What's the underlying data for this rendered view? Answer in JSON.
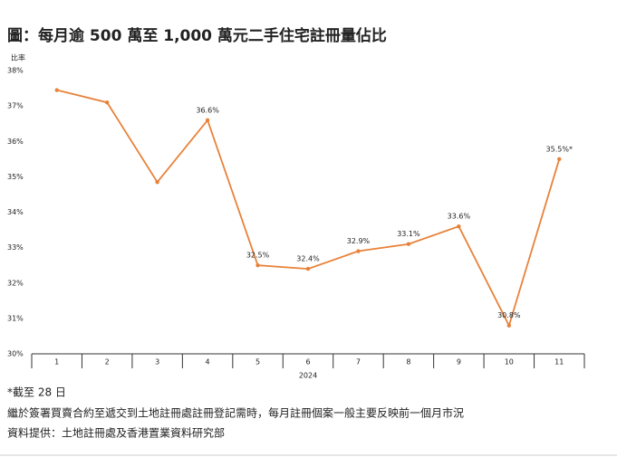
{
  "chart_data": {
    "type": "line",
    "title": "圖：每月逾 500 萬至 1,000 萬元二手住宅註冊量佔比",
    "y_label": "比率",
    "x_label": "2024",
    "categories": [
      "1",
      "2",
      "3",
      "4",
      "5",
      "6",
      "7",
      "8",
      "9",
      "10",
      "11"
    ],
    "values": [
      37.45,
      37.1,
      34.85,
      36.6,
      32.5,
      32.4,
      32.9,
      33.1,
      33.6,
      30.8,
      35.5
    ],
    "value_labels": [
      null,
      null,
      null,
      "36.6%",
      "32.5%",
      "32.4%",
      "32.9%",
      "33.1%",
      "33.6%",
      "30.8%",
      "35.5%*"
    ],
    "color": "#e8823a",
    "ylim": [
      30,
      38
    ],
    "yticks": [
      {
        "value": 30,
        "label": "30%"
      },
      {
        "value": 31,
        "label": "31%"
      },
      {
        "value": 32,
        "label": "32%"
      },
      {
        "value": 33,
        "label": "33%"
      },
      {
        "value": 34,
        "label": "34%"
      },
      {
        "value": 35,
        "label": "35%"
      },
      {
        "value": 36,
        "label": "36%"
      },
      {
        "value": 37,
        "label": "37%"
      },
      {
        "value": 38,
        "label": "38%"
      }
    ],
    "grid": false,
    "notes": [
      "*截至 28 日",
      "繼於簽署買賣合約至遞交到土地註冊處註冊登記需時，每月註冊個案一般主要反映前一個月市況",
      "資料提供：土地註冊處及香港置業資料研究部"
    ]
  }
}
